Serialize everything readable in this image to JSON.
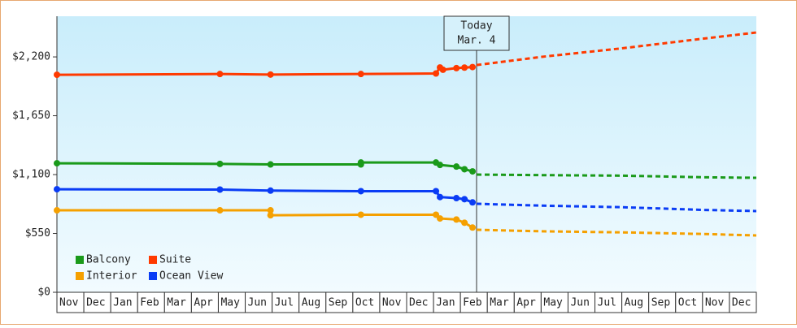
{
  "chart_data": {
    "type": "line",
    "categories": [
      "Nov",
      "Dec",
      "Jan",
      "Feb",
      "Mar",
      "Apr",
      "May",
      "Jun",
      "Jul",
      "Aug",
      "Sep",
      "Oct",
      "Nov",
      "Dec",
      "Jan",
      "Feb",
      "Mar",
      "Apr",
      "May",
      "Jun",
      "Jul",
      "Aug",
      "Sep",
      "Oct",
      "Nov",
      "Dec"
    ],
    "xlim": [
      0,
      26
    ],
    "ylim": [
      0,
      2580
    ],
    "yticks": [
      {
        "value": 0,
        "label": "$0"
      },
      {
        "value": 550,
        "label": "$550"
      },
      {
        "value": 1100,
        "label": "$1,100"
      },
      {
        "value": 1650,
        "label": "$1,650"
      },
      {
        "value": 2200,
        "label": "$2,200"
      }
    ],
    "annotation": {
      "title": "Today",
      "date": "Mar. 4"
    },
    "series": [
      {
        "name": "Balcony",
        "color": "#1a9a1a",
        "x": [
          0,
          6.06,
          7.94,
          11.3,
          11.3,
          14.09,
          14.24,
          14.85,
          15.15,
          15.45
        ],
        "values": [
          1206,
          1200,
          1195,
          1195,
          1213,
          1213,
          1190,
          1175,
          1150,
          1130
        ],
        "forecast_x": [
          15.6,
          18,
          21,
          24,
          26
        ],
        "forecast_values": [
          1100,
          1095,
          1090,
          1075,
          1070
        ]
      },
      {
        "name": "Suite",
        "color": "#ff3a00",
        "x": [
          0,
          6.06,
          7.94,
          11.3,
          14.09,
          14.24,
          14.35,
          14.85,
          15.15,
          15.45
        ],
        "values": [
          2033,
          2040,
          2035,
          2040,
          2045,
          2101,
          2080,
          2095,
          2100,
          2105
        ],
        "forecast_x": [
          15.6,
          18,
          21,
          24,
          26
        ],
        "forecast_values": [
          2124,
          2200,
          2280,
          2370,
          2428
        ]
      },
      {
        "name": "Interior",
        "color": "#f5a000",
        "x": [
          0,
          6.06,
          7.94,
          7.94,
          11.3,
          14.09,
          14.24,
          14.85,
          15.15,
          15.45
        ],
        "values": [
          766,
          766,
          766,
          720,
          725,
          725,
          690,
          680,
          650,
          605
        ],
        "forecast_x": [
          15.6,
          18,
          21,
          24,
          26
        ],
        "forecast_values": [
          584,
          570,
          560,
          545,
          531
        ]
      },
      {
        "name": "Ocean View",
        "color": "#0a3cf5",
        "x": [
          0,
          6.06,
          7.94,
          11.3,
          14.09,
          14.24,
          14.85,
          15.15,
          15.45
        ],
        "values": [
          963,
          960,
          950,
          945,
          945,
          890,
          880,
          870,
          840
        ],
        "forecast_x": [
          15.6,
          18,
          21,
          24,
          26
        ],
        "forecast_values": [
          827,
          810,
          795,
          770,
          759
        ]
      }
    ]
  }
}
